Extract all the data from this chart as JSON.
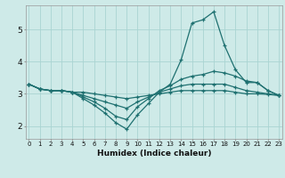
{
  "xlabel": "Humidex (Indice chaleur)",
  "background_color": "#ceeae8",
  "line_color": "#1e7070",
  "grid_color": "#aad4d2",
  "x_ticks": [
    0,
    1,
    2,
    3,
    4,
    5,
    6,
    7,
    8,
    9,
    10,
    11,
    12,
    13,
    14,
    15,
    16,
    17,
    18,
    19,
    20,
    21,
    22,
    23
  ],
  "y_ticks": [
    2,
    3,
    4,
    5
  ],
  "ylim": [
    1.6,
    5.75
  ],
  "xlim": [
    -0.3,
    23.3
  ],
  "series": [
    {
      "x": [
        0,
        1,
        2,
        3,
        4,
        5,
        6,
        7,
        8,
        9,
        10,
        11,
        12,
        13,
        14,
        15,
        16,
        17,
        18,
        19,
        20,
        21,
        22,
        23
      ],
      "y": [
        3.3,
        3.15,
        3.1,
        3.1,
        3.05,
        2.85,
        2.65,
        2.4,
        2.1,
        1.9,
        2.35,
        2.7,
        3.05,
        3.3,
        4.05,
        5.2,
        5.3,
        5.55,
        4.5,
        3.75,
        3.35,
        3.35,
        3.1,
        2.95
      ]
    },
    {
      "x": [
        0,
        1,
        2,
        3,
        4,
        5,
        6,
        7,
        8,
        9,
        10,
        11,
        12,
        13,
        14,
        15,
        16,
        17,
        18,
        19,
        20,
        21,
        22,
        23
      ],
      "y": [
        3.3,
        3.15,
        3.1,
        3.1,
        3.05,
        2.9,
        2.75,
        2.55,
        2.3,
        2.2,
        2.6,
        2.85,
        3.1,
        3.25,
        3.45,
        3.55,
        3.6,
        3.7,
        3.65,
        3.55,
        3.4,
        3.35,
        3.1,
        2.95
      ]
    },
    {
      "x": [
        0,
        1,
        2,
        3,
        4,
        5,
        6,
        7,
        8,
        9,
        10,
        11,
        12,
        13,
        14,
        15,
        16,
        17,
        18,
        19,
        20,
        21,
        22,
        23
      ],
      "y": [
        3.3,
        3.15,
        3.1,
        3.1,
        3.05,
        2.95,
        2.85,
        2.75,
        2.65,
        2.55,
        2.75,
        2.9,
        3.05,
        3.15,
        3.25,
        3.3,
        3.3,
        3.3,
        3.3,
        3.2,
        3.1,
        3.05,
        3.0,
        2.95
      ]
    },
    {
      "x": [
        0,
        1,
        2,
        3,
        4,
        5,
        6,
        7,
        8,
        9,
        10,
        11,
        12,
        13,
        14,
        15,
        16,
        17,
        18,
        19,
        20,
        21,
        22,
        23
      ],
      "y": [
        3.3,
        3.15,
        3.1,
        3.1,
        3.05,
        3.05,
        3.0,
        2.95,
        2.9,
        2.85,
        2.9,
        2.95,
        3.0,
        3.05,
        3.1,
        3.1,
        3.1,
        3.1,
        3.1,
        3.05,
        3.0,
        3.0,
        2.98,
        2.95
      ]
    }
  ],
  "xlabel_fontsize": 6.5,
  "xlabel_fontweight": "bold",
  "xtick_fontsize": 5.0,
  "ytick_fontsize": 6.5
}
